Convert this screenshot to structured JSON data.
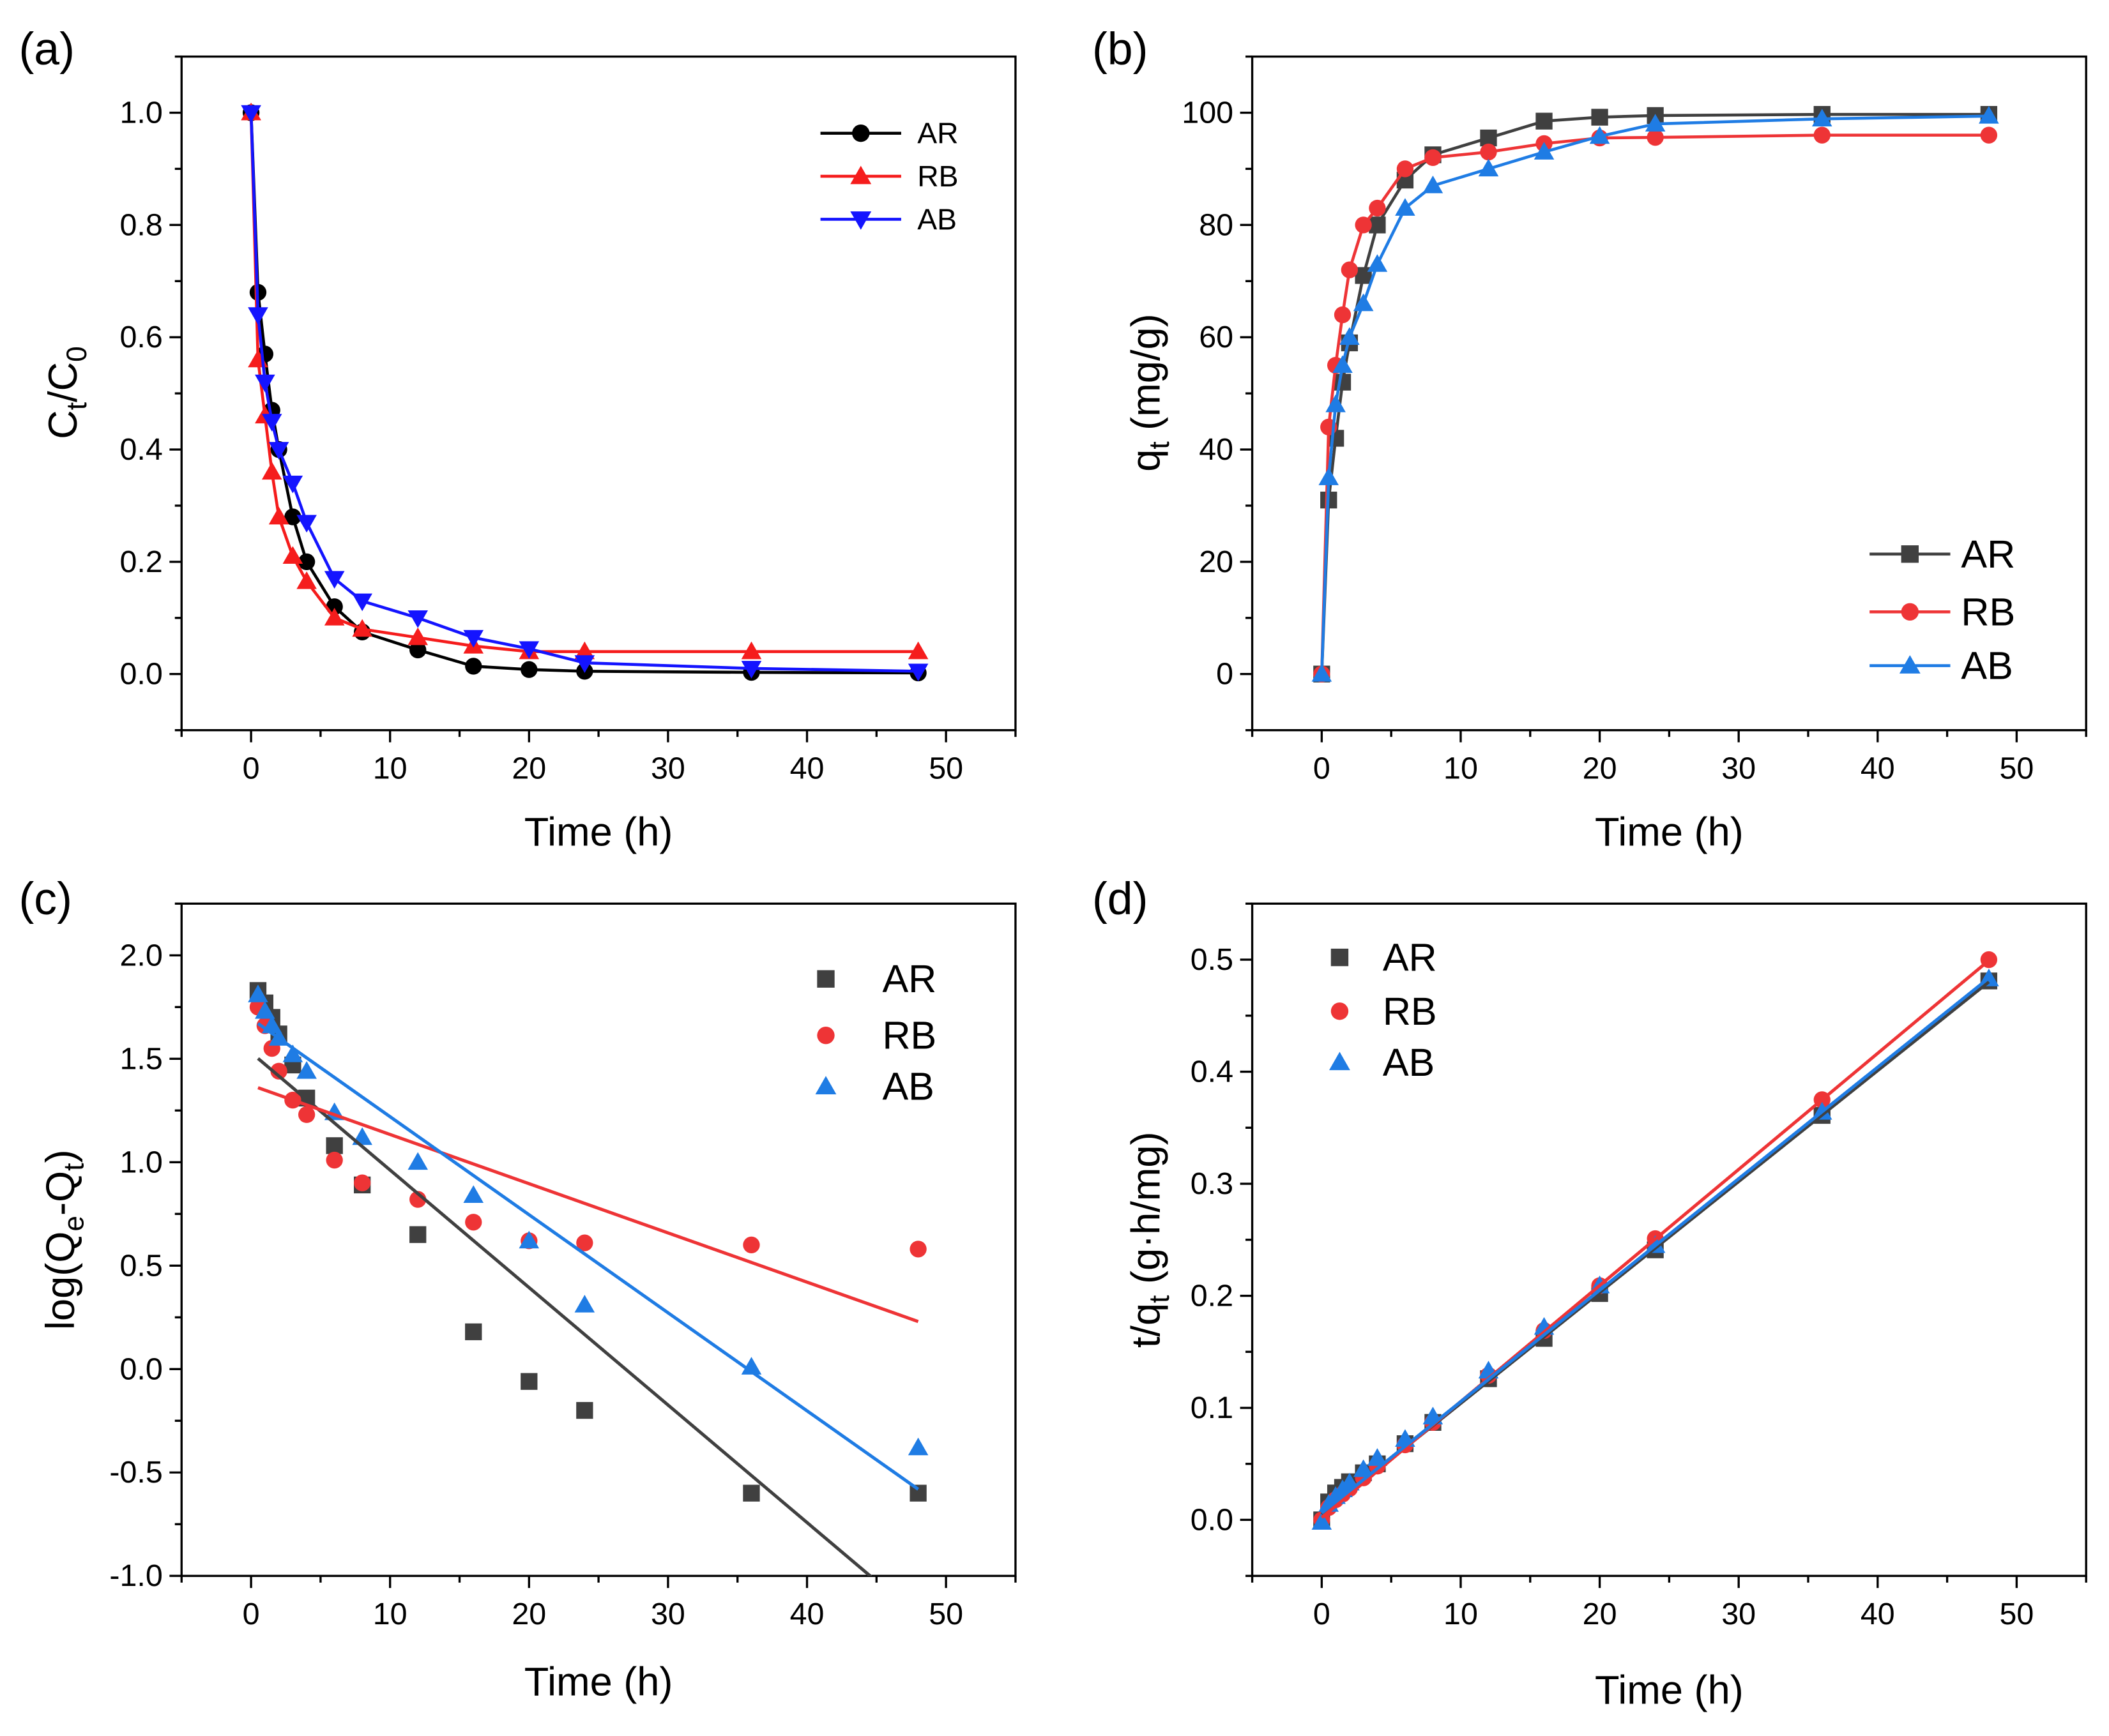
{
  "figure": {
    "background": "#ffffff"
  },
  "chart_data": [
    {
      "panel": "(a)",
      "type": "line",
      "x": [
        0,
        0.5,
        1,
        1.5,
        2,
        3,
        4,
        6,
        8,
        12,
        16,
        20,
        24,
        36,
        48
      ],
      "series": [
        {
          "name": "AR",
          "color": "#000000",
          "marker": "circle",
          "values": [
            1.0,
            0.68,
            0.57,
            0.47,
            0.4,
            0.28,
            0.2,
            0.12,
            0.075,
            0.043,
            0.014,
            0.008,
            0.005,
            0.003,
            0.002
          ]
        },
        {
          "name": "RB",
          "color": "#f51c1c",
          "marker": "triangle-up",
          "values": [
            1.0,
            0.56,
            0.46,
            0.36,
            0.28,
            0.21,
            0.165,
            0.1,
            0.08,
            0.065,
            0.05,
            0.04,
            0.04,
            0.04,
            0.04
          ]
        },
        {
          "name": "AB",
          "color": "#1414ff",
          "marker": "triangle-down",
          "values": [
            1.0,
            0.64,
            0.52,
            0.45,
            0.4,
            0.34,
            0.27,
            0.17,
            0.13,
            0.1,
            0.065,
            0.045,
            0.02,
            0.01,
            0.005
          ]
        }
      ],
      "xlabel": "Time (h)",
      "ylabel": [
        {
          "t": "C"
        },
        {
          "t": "t",
          "sub": true
        },
        {
          "t": "/C"
        },
        {
          "t": "0",
          "sub": true
        }
      ],
      "xlim": [
        -5,
        55
      ],
      "ylim": [
        -0.1,
        1.1
      ],
      "xticks": [
        "0",
        "10",
        "20",
        "30",
        "40",
        "50"
      ],
      "yticks": [
        "0.0",
        "0.2",
        "0.4",
        "0.6",
        "0.8",
        "1.0"
      ],
      "legend": {
        "placement": "top-right",
        "style": "line-marker"
      },
      "grid": false
    },
    {
      "panel": "(b)",
      "type": "line",
      "x": [
        0,
        0.5,
        1,
        1.5,
        2,
        3,
        4,
        6,
        8,
        12,
        16,
        20,
        24,
        36,
        48
      ],
      "series": [
        {
          "name": "AR",
          "color": "#404040",
          "marker": "square",
          "values": [
            0,
            31,
            42,
            52,
            59,
            71,
            80,
            88,
            92.5,
            95.5,
            98.5,
            99.2,
            99.5,
            99.7,
            99.7
          ]
        },
        {
          "name": "RB",
          "color": "#ee3436",
          "marker": "circle",
          "values": [
            0,
            44,
            55,
            64,
            72,
            80,
            83,
            90,
            92,
            93,
            94.5,
            95.5,
            95.6,
            96,
            96
          ]
        },
        {
          "name": "AB",
          "color": "#1f7ce4",
          "marker": "triangle-up",
          "values": [
            0,
            35,
            48,
            55,
            60,
            66,
            73,
            83,
            87,
            90,
            93,
            95.8,
            98,
            98.9,
            99.4
          ]
        }
      ],
      "xlabel": "Time (h)",
      "ylabel": [
        {
          "t": "q"
        },
        {
          "t": "t",
          "sub": true
        },
        {
          "t": " (mg/g)"
        }
      ],
      "xlim": [
        -5,
        55
      ],
      "ylim": [
        -10,
        110
      ],
      "xticks": [
        "0",
        "10",
        "20",
        "30",
        "40",
        "50"
      ],
      "yticks": [
        "0",
        "20",
        "40",
        "60",
        "80",
        "100"
      ],
      "legend": {
        "placement": "bottom-right",
        "style": "line-marker"
      },
      "grid": false
    },
    {
      "panel": "(c)",
      "type": "scatter",
      "x": [
        0.5,
        1,
        1.5,
        2,
        3,
        4,
        6,
        8,
        12,
        16,
        20,
        24,
        36,
        48
      ],
      "series": [
        {
          "name": "AR",
          "color": "#404040",
          "marker": "square",
          "values": [
            1.83,
            1.77,
            1.7,
            1.62,
            1.47,
            1.31,
            1.08,
            0.89,
            0.65,
            0.18,
            -0.06,
            -0.2,
            -0.6,
            -0.6
          ]
        },
        {
          "name": "RB",
          "color": "#ee3436",
          "marker": "circle",
          "values": [
            1.75,
            1.66,
            1.55,
            1.44,
            1.3,
            1.23,
            1.01,
            0.9,
            0.82,
            0.71,
            0.62,
            0.61,
            0.6,
            0.58
          ]
        },
        {
          "name": "AB",
          "color": "#1f7ce4",
          "marker": "triangle-up",
          "values": [
            1.81,
            1.73,
            1.66,
            1.6,
            1.52,
            1.44,
            1.24,
            1.12,
            1.0,
            0.84,
            0.62,
            0.31,
            0.01,
            -0.38
          ]
        }
      ],
      "fits": [
        {
          "series": "AR",
          "intercept": 1.53,
          "slope": -0.0568,
          "x_range": [
            0.5,
            44.6
          ]
        },
        {
          "series": "RB",
          "intercept": 1.372,
          "slope": -0.0238,
          "x_range": [
            0.5,
            48
          ]
        },
        {
          "series": "AB",
          "intercept": 1.694,
          "slope": -0.0474,
          "x_range": [
            0.5,
            48
          ]
        }
      ],
      "xlabel": "Time (h)",
      "ylabel": [
        {
          "t": "log(Q"
        },
        {
          "t": "e",
          "sub": true
        },
        {
          "t": "-Q"
        },
        {
          "t": "t",
          "sub": true
        },
        {
          "t": ")"
        }
      ],
      "xlim": [
        -5,
        55
      ],
      "ylim": [
        -1.0,
        2.25
      ],
      "xticks": [
        "0",
        "10",
        "20",
        "30",
        "40",
        "50"
      ],
      "yticks": [
        "-1.0",
        "-0.5",
        "0.0",
        "0.5",
        "1.0",
        "1.5",
        "2.0"
      ],
      "legend": {
        "placement": "top-right",
        "style": "marker"
      },
      "grid": false
    },
    {
      "panel": "(d)",
      "type": "scatter",
      "x": [
        0,
        0.5,
        1,
        1.5,
        2,
        3,
        4,
        6,
        8,
        12,
        16,
        20,
        24,
        36,
        48
      ],
      "series": [
        {
          "name": "AR",
          "color": "#404040",
          "marker": "square",
          "values": [
            0,
            0.016,
            0.024,
            0.029,
            0.034,
            0.042,
            0.05,
            0.068,
            0.087,
            0.126,
            0.162,
            0.202,
            0.241,
            0.361,
            0.481
          ]
        },
        {
          "name": "RB",
          "color": "#ee3436",
          "marker": "circle",
          "values": [
            0,
            0.011,
            0.018,
            0.023,
            0.028,
            0.0375,
            0.048,
            0.067,
            0.087,
            0.129,
            0.169,
            0.209,
            0.251,
            0.375,
            0.5
          ]
        },
        {
          "name": "AB",
          "color": "#1f7ce4",
          "marker": "triangle-up",
          "values": [
            -0.002,
            0.014,
            0.021,
            0.027,
            0.033,
            0.045,
            0.055,
            0.072,
            0.092,
            0.133,
            0.172,
            0.209,
            0.245,
            0.364,
            0.483
          ]
        }
      ],
      "fits": [
        {
          "series": "AR",
          "intercept": 0.005,
          "slope": 0.0099,
          "x_range": [
            0,
            48
          ]
        },
        {
          "series": "RB",
          "intercept": 0.002,
          "slope": 0.01036,
          "x_range": [
            0,
            48
          ]
        },
        {
          "series": "AB",
          "intercept": 0.006,
          "slope": 0.00995,
          "x_range": [
            0,
            48
          ]
        }
      ],
      "xlabel": "Time (h)",
      "ylabel": [
        {
          "t": "t/q"
        },
        {
          "t": "t",
          "sub": true
        },
        {
          "t": " (g·h/mg)"
        }
      ],
      "xlim": [
        -5,
        55
      ],
      "ylim": [
        -0.05,
        0.55
      ],
      "xticks": [
        "0",
        "10",
        "20",
        "30",
        "40",
        "50"
      ],
      "yticks": [
        "0.0",
        "0.1",
        "0.2",
        "0.3",
        "0.4",
        "0.5"
      ],
      "legend": {
        "placement": "top-left",
        "style": "marker"
      },
      "grid": false
    }
  ]
}
